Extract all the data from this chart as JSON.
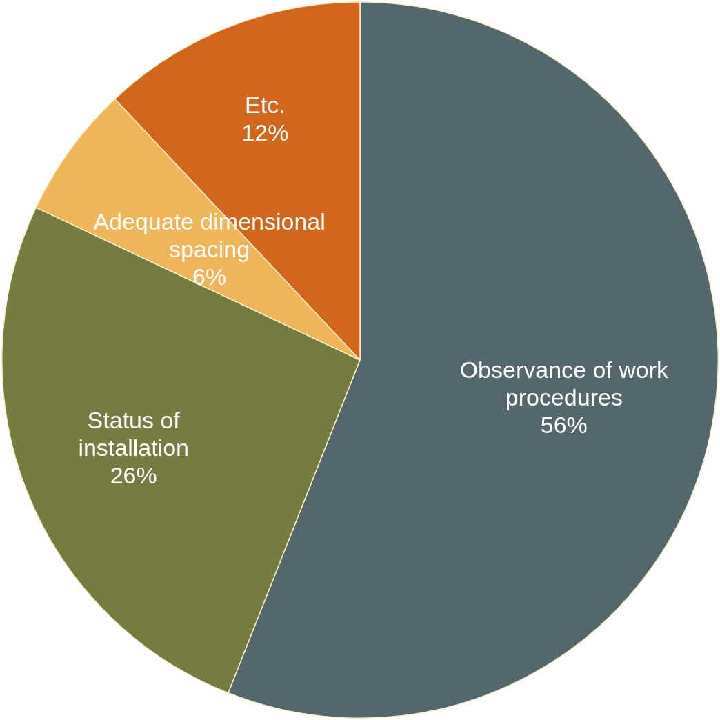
{
  "chart_data": {
    "type": "pie",
    "categories": [
      "Observance of work procedures",
      "Status of installation",
      "Adequate dimensional spacing",
      "Etc."
    ],
    "values": [
      56,
      26,
      6,
      12
    ],
    "colors": [
      "#53676d",
      "#767b42",
      "#f0b45a",
      "#d0671c"
    ],
    "value_labels": [
      "56%",
      "26%",
      "6%",
      "12%"
    ]
  }
}
